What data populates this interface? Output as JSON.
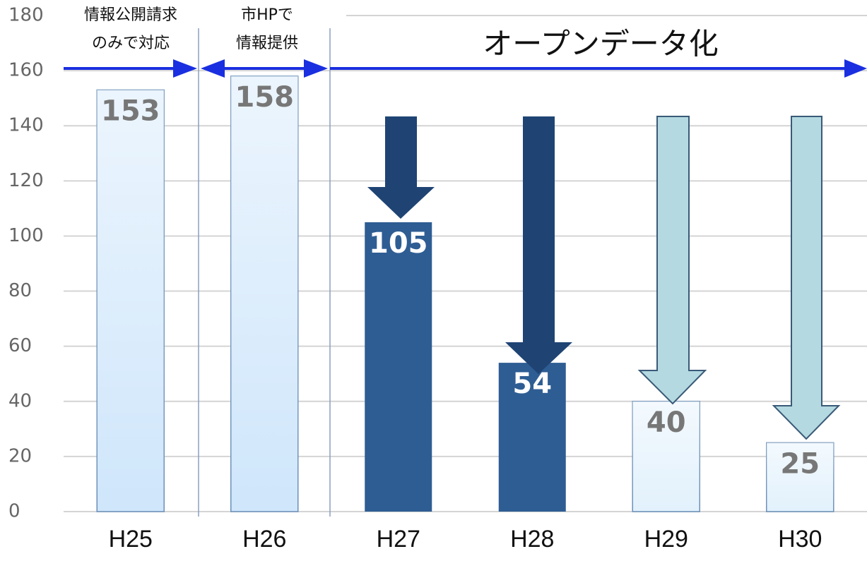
{
  "chart_data": {
    "type": "bar",
    "annotations": [
      {
        "lines": [
          "情報公開請求",
          "のみで対応"
        ]
      },
      {
        "lines": [
          "市HPで",
          "情報提供"
        ]
      },
      {
        "lines": [
          "オープンデータ化"
        ]
      }
    ],
    "categories": [
      "H25",
      "H26",
      "H27",
      "H28",
      "H29",
      "H30"
    ],
    "values": [
      153,
      158,
      105,
      54,
      40,
      25
    ],
    "colors": [
      "#cfe6fb",
      "#cfe6fb",
      "#2e5d93",
      "#2e5d93",
      "#e2f1fc",
      "#e2f1fc"
    ],
    "ylim": [
      0,
      180
    ],
    "yticks": [
      0,
      20,
      40,
      60,
      80,
      100,
      120,
      140,
      160,
      180
    ],
    "grid": true
  }
}
